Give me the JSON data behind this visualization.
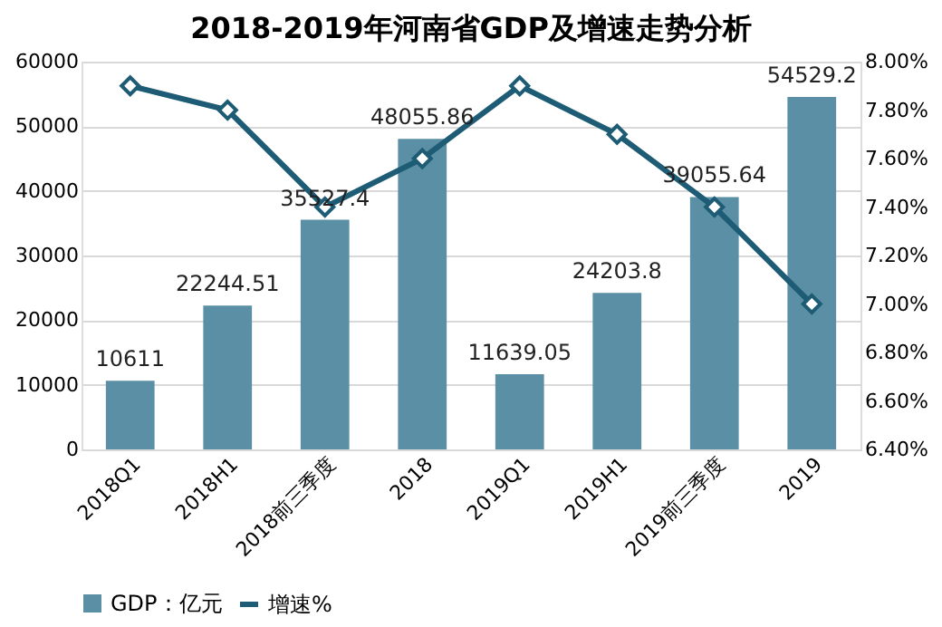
{
  "chart_data": {
    "type": "bar",
    "title": "2018-2019年河南省GDP及增速走势分析",
    "categories": [
      "2018Q1",
      "2018H1",
      "2018前三季度",
      "2018",
      "2019Q1",
      "2019H1",
      "2019前三季度",
      "2019"
    ],
    "series": [
      {
        "name": "GDP：亿元",
        "color": "#5b8fa6",
        "values": [
          10611,
          22244.51,
          35527.4,
          48055.86,
          11639.05,
          24203.8,
          39055.64,
          54529.2
        ],
        "value_labels": [
          "10611",
          "22244.51",
          "35527.4",
          "48055.86",
          "11639.05",
          "24203.8",
          "39055.64",
          "54529.2"
        ]
      },
      {
        "name": "增速%",
        "type": "line",
        "axis": "y2",
        "color": "#1d5c74",
        "marker": "diamond",
        "values": [
          7.9,
          7.8,
          7.4,
          7.6,
          7.9,
          7.7,
          7.4,
          7.0
        ]
      }
    ],
    "ylim": [
      0,
      60000
    ],
    "yticks": [
      0,
      10000,
      20000,
      30000,
      40000,
      50000,
      60000
    ],
    "y2lim": [
      6.4,
      8.0
    ],
    "y2ticks": [
      {
        "value": 6.4,
        "label": "6.40%"
      },
      {
        "value": 6.6,
        "label": "6.60%"
      },
      {
        "value": 6.8,
        "label": "6.80%"
      },
      {
        "value": 7.0,
        "label": "7.00%"
      },
      {
        "value": 7.2,
        "label": "7.20%"
      },
      {
        "value": 7.4,
        "label": "7.40%"
      },
      {
        "value": 7.6,
        "label": "7.60%"
      },
      {
        "value": 7.8,
        "label": "7.80%"
      },
      {
        "value": 8.0,
        "label": "8.00%"
      }
    ],
    "grid": "y",
    "legend": "bottom"
  }
}
